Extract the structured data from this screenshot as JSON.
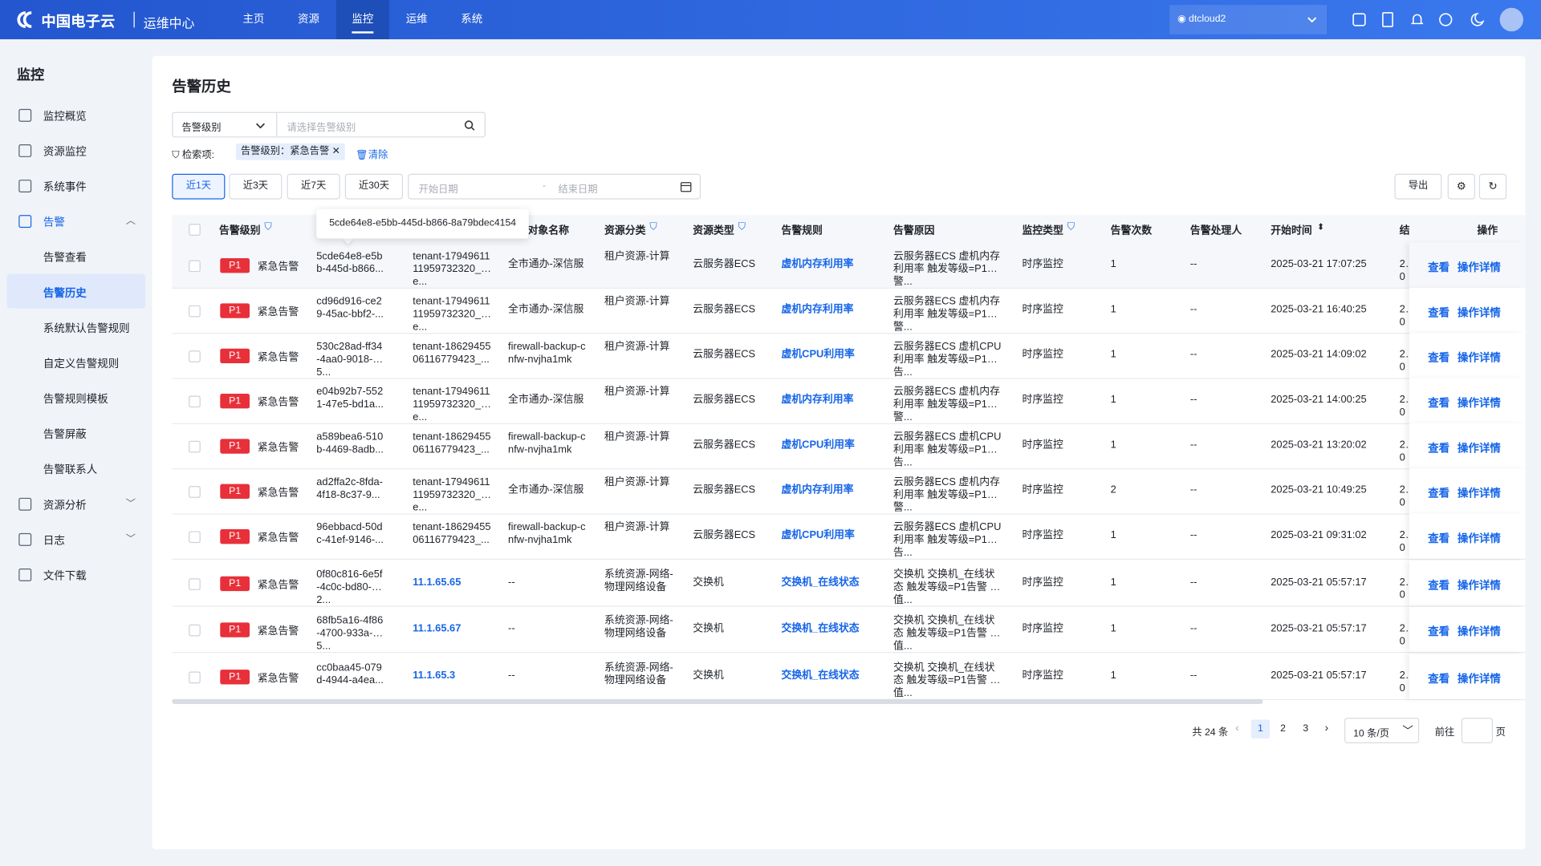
{
  "header": {
    "logo": "中国电子云",
    "app": "运维中心",
    "nav": [
      "主页",
      "资源",
      "监控",
      "运维",
      "系统"
    ],
    "active_nav": 2,
    "tenant": "dtcloud2"
  },
  "sidebar": {
    "title": "监控",
    "items": [
      {
        "label": "监控概览"
      },
      {
        "label": "资源监控"
      },
      {
        "label": "系统事件"
      },
      {
        "label": "告警",
        "children": [
          "告警查看",
          "告警历史",
          "系统默认告警规则",
          "自定义告警规则",
          "告警规则模板",
          "告警屏蔽",
          "告警联系人"
        ]
      },
      {
        "label": "资源分析"
      },
      {
        "label": "日志"
      },
      {
        "label": "文件下载"
      }
    ],
    "active_child": 1
  },
  "page": {
    "title": "告警历史",
    "filter_select": "告警级别",
    "filter_placeholder": "请选择告警级别",
    "search_label": "检索项:",
    "search_tag": "告警级别：紧急告警",
    "clear": "清除",
    "time_buttons": [
      "近1天",
      "近3天",
      "近7天",
      "近30天"
    ],
    "date_start": "开始日期",
    "date_sep": "-",
    "date_end": "结束日期",
    "export": "导出"
  },
  "table": {
    "headers": [
      "告警级别",
      null,
      null,
      "对象名称",
      "资源分类",
      "资源类型",
      "告警规则",
      "告警原因",
      "监控类型",
      "告警次数",
      "告警处理人",
      "开始时间",
      "结",
      "操作"
    ],
    "tooltip": "5cde64e8-e5bb-445d-b866-8a79bdec4154",
    "actions": [
      "查看",
      "操作详情"
    ],
    "rows": [
      [
        "P1",
        "紧急告警",
        "5cde64e8-e5bb-445d-b866...",
        "tenant-1794961111959732320_e...",
        "全市通办-深信服",
        "租户资源-计算",
        "云服务器ECS",
        "虚机内存利用率",
        "云服务器ECS 虚机内存利用率 触发等级=P1告警...",
        "时序监控",
        "1",
        "--",
        "2025-03-21 17:07:25",
        "20"
      ],
      [
        "P1",
        "紧急告警",
        "cd96d916-ce29-45ac-bbf2-...",
        "tenant-1794961111959732320_e...",
        "全市通办-深信服",
        "租户资源-计算",
        "云服务器ECS",
        "虚机内存利用率",
        "云服务器ECS 虚机内存利用率 触发等级=P1告警...",
        "时序监控",
        "1",
        "--",
        "2025-03-21 16:40:25",
        "20"
      ],
      [
        "P1",
        "紧急告警",
        "530c28ad-ff34-4aa0-9018-5...",
        "tenant-1862945506116779423_...",
        "firewall-backup-cnfw-nvjha1mk",
        "租户资源-计算",
        "云服务器ECS",
        "虚机CPU利用率",
        "云服务器ECS 虚机CPU利用率 触发等级=P1告...",
        "时序监控",
        "1",
        "--",
        "2025-03-21 14:09:02",
        "20"
      ],
      [
        "P1",
        "紧急告警",
        "e04b92b7-5521-47e5-bd1a...",
        "tenant-1794961111959732320_e...",
        "全市通办-深信服",
        "租户资源-计算",
        "云服务器ECS",
        "虚机内存利用率",
        "云服务器ECS 虚机内存利用率 触发等级=P1告警...",
        "时序监控",
        "1",
        "--",
        "2025-03-21 14:00:25",
        "20"
      ],
      [
        "P1",
        "紧急告警",
        "a589bea6-510b-4469-8adb...",
        "tenant-1862945506116779423_...",
        "firewall-backup-cnfw-nvjha1mk",
        "租户资源-计算",
        "云服务器ECS",
        "虚机CPU利用率",
        "云服务器ECS 虚机CPU利用率 触发等级=P1告...",
        "时序监控",
        "1",
        "--",
        "2025-03-21 13:20:02",
        "20"
      ],
      [
        "P1",
        "紧急告警",
        "ad2ffa2c-8fda-4f18-8c37-9...",
        "tenant-1794961111959732320_e...",
        "全市通办-深信服",
        "租户资源-计算",
        "云服务器ECS",
        "虚机内存利用率",
        "云服务器ECS 虚机内存利用率 触发等级=P1告警...",
        "时序监控",
        "2",
        "--",
        "2025-03-21 10:49:25",
        "20"
      ],
      [
        "P1",
        "紧急告警",
        "96ebbacd-50dc-41ef-9146-...",
        "tenant-1862945506116779423_...",
        "firewall-backup-cnfw-nvjha1mk",
        "租户资源-计算",
        "云服务器ECS",
        "虚机CPU利用率",
        "云服务器ECS 虚机CPU利用率 触发等级=P1告...",
        "时序监控",
        "1",
        "--",
        "2025-03-21 09:31:02",
        "20"
      ],
      [
        "P1",
        "紧急告警",
        "0f80c816-6e5f-4c0c-bd80-2...",
        "11.1.65.65",
        "--",
        "系统资源-网络-物理网络设备",
        "交换机",
        "交换机_在线状态",
        "交换机 交换机_在线状态 触发等级=P1告警 阈值...",
        "时序监控",
        "1",
        "--",
        "2025-03-21 05:57:17",
        "20"
      ],
      [
        "P1",
        "紧急告警",
        "68fb5a16-4f86-4700-933a-5...",
        "11.1.65.67",
        "--",
        "系统资源-网络-物理网络设备",
        "交换机",
        "交换机_在线状态",
        "交换机 交换机_在线状态 触发等级=P1告警 阈值...",
        "时序监控",
        "1",
        "--",
        "2025-03-21 05:57:17",
        "20"
      ],
      [
        "P1",
        "紧急告警",
        "cc0baa45-079d-4944-a4ea...",
        "11.1.65.3",
        "--",
        "系统资源-网络-物理网络设备",
        "交换机",
        "交换机_在线状态",
        "交换机 交换机_在线状态 触发等级=P1告警 阈值...",
        "时序监控",
        "1",
        "--",
        "2025-03-21 05:57:17",
        "20"
      ]
    ]
  },
  "pagination": {
    "total": "共 24 条",
    "pages": [
      "1",
      "2",
      "3"
    ],
    "active_page": 0,
    "page_size": "10 条/页",
    "goto": "前往",
    "goto_unit": "页"
  }
}
